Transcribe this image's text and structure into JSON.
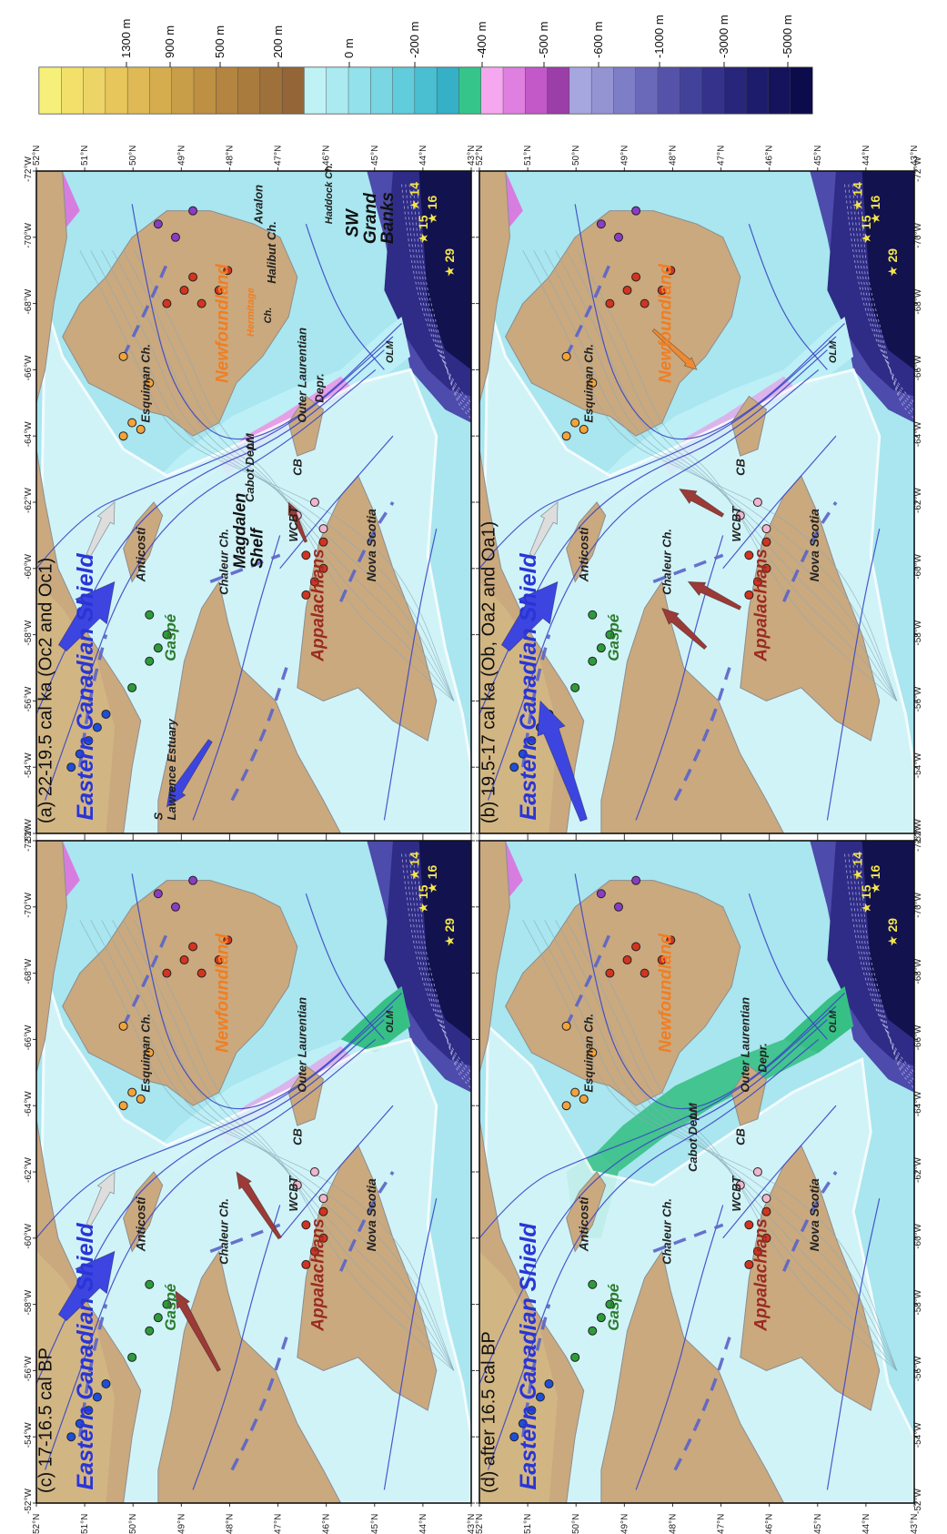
{
  "legend": {
    "classes": [
      {
        "label": "1300 m",
        "colors": [
          "#f6f07a",
          "#f2e06a",
          "#ecd466"
        ]
      },
      {
        "label": "900 m",
        "colors": [
          "#e7c65c",
          "#deb955",
          "#d5ad4f"
        ]
      },
      {
        "label": "500 m",
        "colors": [
          "#c89e49",
          "#bd9044",
          "#b38540"
        ]
      },
      {
        "label": "200 m",
        "colors": [
          "#a97b3d",
          "#9f713a",
          "#946637"
        ]
      },
      {
        "label": "0 m",
        "colors": [
          "#bff2f5",
          "#aaeaf0"
        ]
      },
      {
        "label": "-200 m",
        "colors": [
          "#93e1ea",
          "#79d6e2",
          "#61ccdb"
        ]
      },
      {
        "label": "-400 m",
        "colors": [
          "#4bbfd2",
          "#36b0c6",
          "#35c58a"
        ]
      },
      {
        "label": "-500 m",
        "colors": [
          "#f5a8ef",
          "#df7fe0",
          "#c359c9"
        ]
      },
      {
        "label": "-600 m",
        "colors": [
          "#9c3ea8",
          "#a6a7df",
          "#9494d3"
        ]
      },
      {
        "label": "-1000 m",
        "colors": [
          "#7e7ec7",
          "#6a68b9",
          "#5553a9"
        ]
      },
      {
        "label": "-3000 m",
        "colors": [
          "#43429a",
          "#34328a",
          "#27267a"
        ]
      },
      {
        "label": "-5000 m",
        "colors": [
          "#1d1c6c",
          "#14135c",
          "#0c0b4c"
        ]
      }
    ]
  },
  "lat_ticks": [
    "52°N",
    "51°N",
    "50°N",
    "49°N",
    "48°N",
    "47°N",
    "46°N",
    "45°N",
    "44°N",
    "43°N"
  ],
  "lon_ticks": [
    "-72°W",
    "-70°W",
    "-68°W",
    "-66°W",
    "-64°W",
    "-62°W",
    "-60°W",
    "-58°W",
    "-56°W",
    "-54°W",
    "-52°W"
  ],
  "colors": {
    "land": "#caa97f",
    "shelf": "#d7f6fa",
    "shallow": "#a9e6ef",
    "mid": "#74cede",
    "deep": "#2e2c86",
    "abyss": "#12124f",
    "green_trough": "#37c085",
    "pink_trough": "#e79be6",
    "ice_arrow": "#3d45e0",
    "red_arrow": "#9b3a36",
    "orange_arrow": "#f08a32",
    "flow_line": "#3a46c8",
    "dash": "#5a63c8",
    "green_label": "#2b7a2b",
    "orange_label": "#f07e22",
    "red_label": "#9a2a22",
    "blue_label": "#2a35d6"
  },
  "panels": [
    {
      "id": "a",
      "title": "(a) 22-19.5 cal ka (Oc2 and Oc1)",
      "variant": "early",
      "labels": {
        "shield": "Eastern Canadian Shield",
        "gaspe": "Gaspé",
        "appalachians": "Appalachians",
        "newfoundland": "Newfoundland",
        "anticosti": "Anticosti",
        "chaleur": "Chaleur Ch.",
        "nova_scotia": "Nova Scotia",
        "wcbt": "WCBT",
        "cb": "CB",
        "esquiman": "Esquiman Ch.",
        "olm": "OLM",
        "magdalen1": "Magdalen",
        "magdalen2": "Shelf",
        "cabot": "Cabot Depr.",
        "lm": "LM",
        "outer1": "Outer Laurentian",
        "outer2": "Depr.",
        "sw": "SW",
        "grand": "Grand",
        "banks": "Banks",
        "halibut": "Halibut Ch.",
        "haddock": "Haddock Ch.",
        "avalon": "Avalon",
        "hermitage1": "Hermitage",
        "hermitage2": "Ch.",
        "estuary": "Lawrence Estuary",
        "estuary_s": "S",
        "star14": "14",
        "star15": "15",
        "star16": "16",
        "star29": "29"
      }
    },
    {
      "id": "b",
      "title": "(b) 19.5-17 cal ka (Ob, Oa2 and Oa1)",
      "variant": "mid",
      "labels": {
        "shield": "Eastern Canadian Shield",
        "gaspe": "Gaspé",
        "appalachians": "Appalachians",
        "newfoundland": "Newfoundland",
        "anticosti": "Anticosti",
        "chaleur": "Chaleur Ch.",
        "nova_scotia": "Nova Scotia",
        "wcbt": "WCBT",
        "cb": "CB",
        "esquiman": "Esquiman Ch.",
        "olm": "OLM",
        "star14": "14",
        "star15": "15",
        "star16": "16",
        "star29": "29"
      }
    },
    {
      "id": "c",
      "title": "(c) 17-16.5 cal BP",
      "variant": "mid2",
      "labels": {
        "shield": "Eastern Canadian Shield",
        "gaspe": "Gaspé",
        "appalachians": "Appalachians",
        "newfoundland": "Newfoundland",
        "anticosti": "Anticosti",
        "chaleur": "Chaleur Ch.",
        "nova_scotia": "Nova Scotia",
        "wcbt": "WCBT",
        "cb": "CB",
        "esquiman": "Esquiman Ch.",
        "olm": "OLM",
        "outer1": "Outer Laurentian",
        "star14": "14",
        "star15": "15",
        "star16": "16",
        "star29": "29"
      }
    },
    {
      "id": "d",
      "title": "(d) after 16.5 cal BP",
      "variant": "late",
      "labels": {
        "shield": "Eastern Canadian Shield",
        "gaspe": "Gaspé",
        "appalachians": "Appalachians",
        "newfoundland": "Newfoundland",
        "anticosti": "Anticosti",
        "chaleur": "Chaleur Ch.",
        "nova_scotia": "Nova Scotia",
        "wcbt": "WCBT",
        "cb": "CB",
        "esquiman": "Esquiman Ch.",
        "olm": "OLM",
        "cabot": "Cabot Depr.",
        "lm": "LM",
        "outer1": "Outer Laurentian",
        "outer2": "Depr.",
        "star14": "14",
        "star15": "15",
        "star16": "16",
        "star29": "29"
      }
    }
  ]
}
